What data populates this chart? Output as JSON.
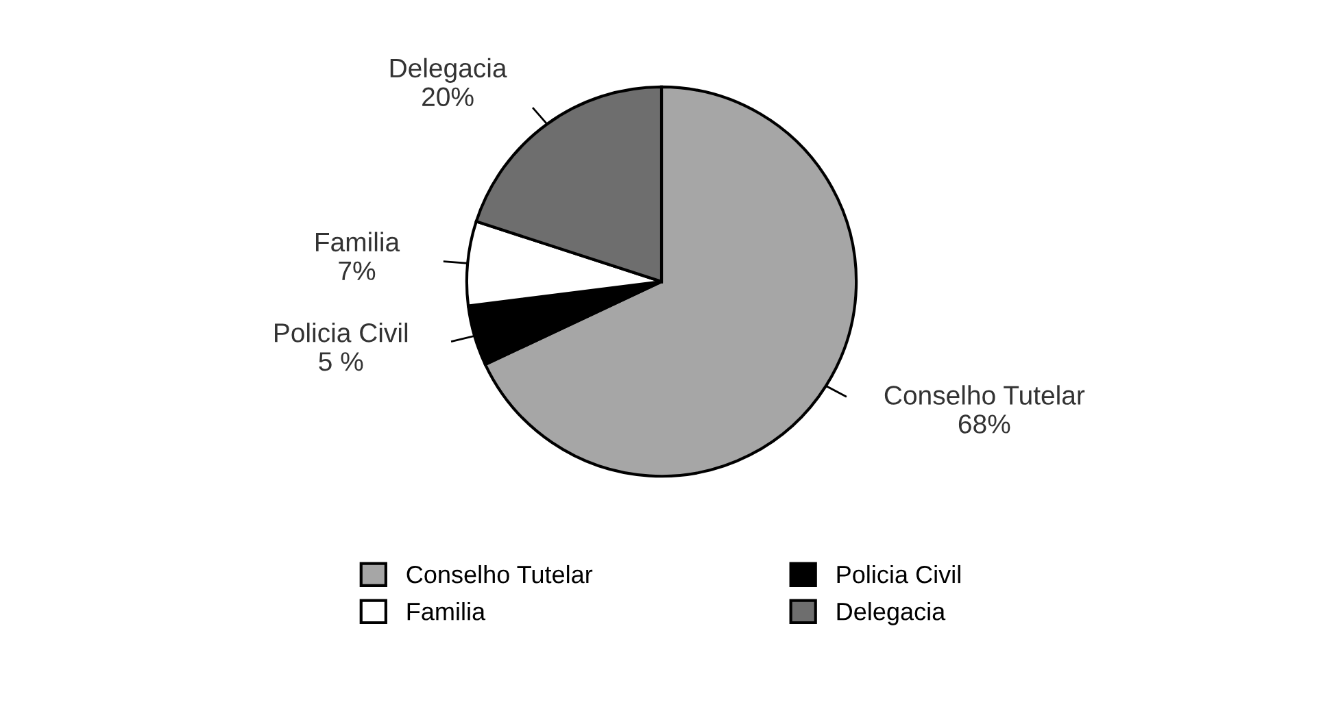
{
  "chart_data": {
    "type": "pie",
    "categories": [
      "Conselho Tutelar",
      "Policia Civil",
      "Familia",
      "Delegacia"
    ],
    "values": [
      68,
      5,
      7,
      20
    ],
    "value_labels": [
      "68%",
      "5 %",
      "7%",
      "20%"
    ],
    "colors": [
      "#a6a6a6",
      "#000000",
      "#ffffff",
      "#6e6e6e"
    ],
    "legend": "bottom"
  }
}
